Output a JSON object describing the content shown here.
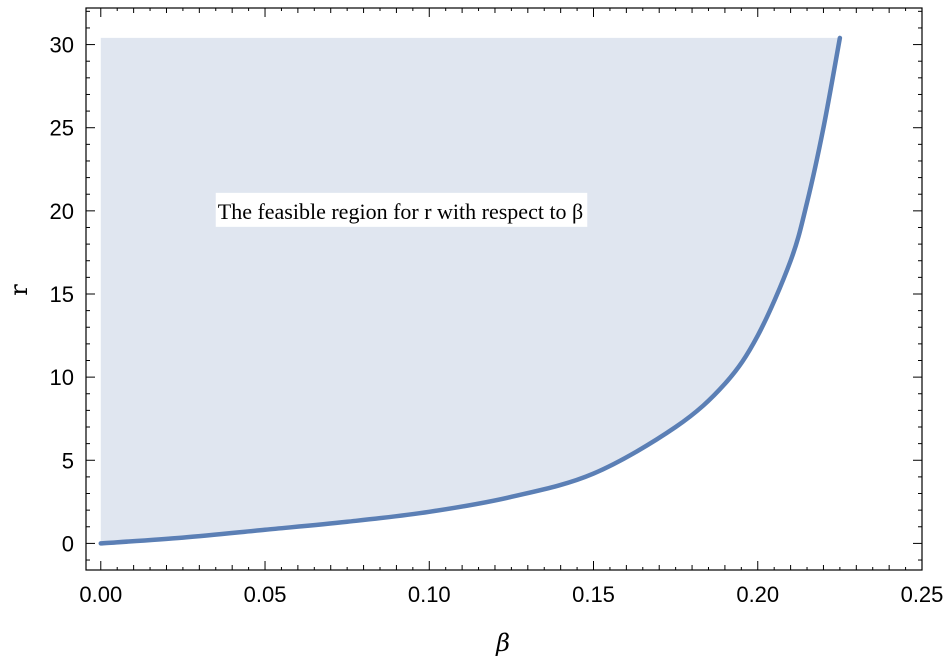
{
  "chart_data": {
    "type": "area",
    "xlabel": "β",
    "ylabel": "r",
    "xlim": [
      -0.0045,
      0.25
    ],
    "ylim": [
      -1.6,
      32.2
    ],
    "x_ticks": [
      0.0,
      0.05,
      0.1,
      0.15,
      0.2,
      0.25
    ],
    "x_tick_labels": [
      "0.00",
      "0.05",
      "0.10",
      "0.15",
      "0.20",
      "0.25"
    ],
    "y_ticks": [
      0,
      5,
      10,
      15,
      20,
      25,
      30
    ],
    "y_tick_labels": [
      "0",
      "5",
      "10",
      "15",
      "20",
      "25",
      "30"
    ],
    "grid": false,
    "annotation": {
      "text": "The feasible region for r with respect to β",
      "x": 0.035,
      "y": 20
    },
    "fill_top": 30.4,
    "series": [
      {
        "x": [
          0.0,
          0.025,
          0.05,
          0.075,
          0.1,
          0.125,
          0.15,
          0.175,
          0.19,
          0.2,
          0.21,
          0.215,
          0.22,
          0.225
        ],
        "y": [
          0.0,
          0.35,
          0.82,
          1.3,
          1.9,
          2.8,
          4.2,
          7.0,
          9.6,
          12.5,
          17.0,
          20.5,
          25.0,
          30.4
        ]
      }
    ],
    "colors": {
      "line": "#5b7fb5",
      "fill": "#e0e6f0"
    }
  }
}
